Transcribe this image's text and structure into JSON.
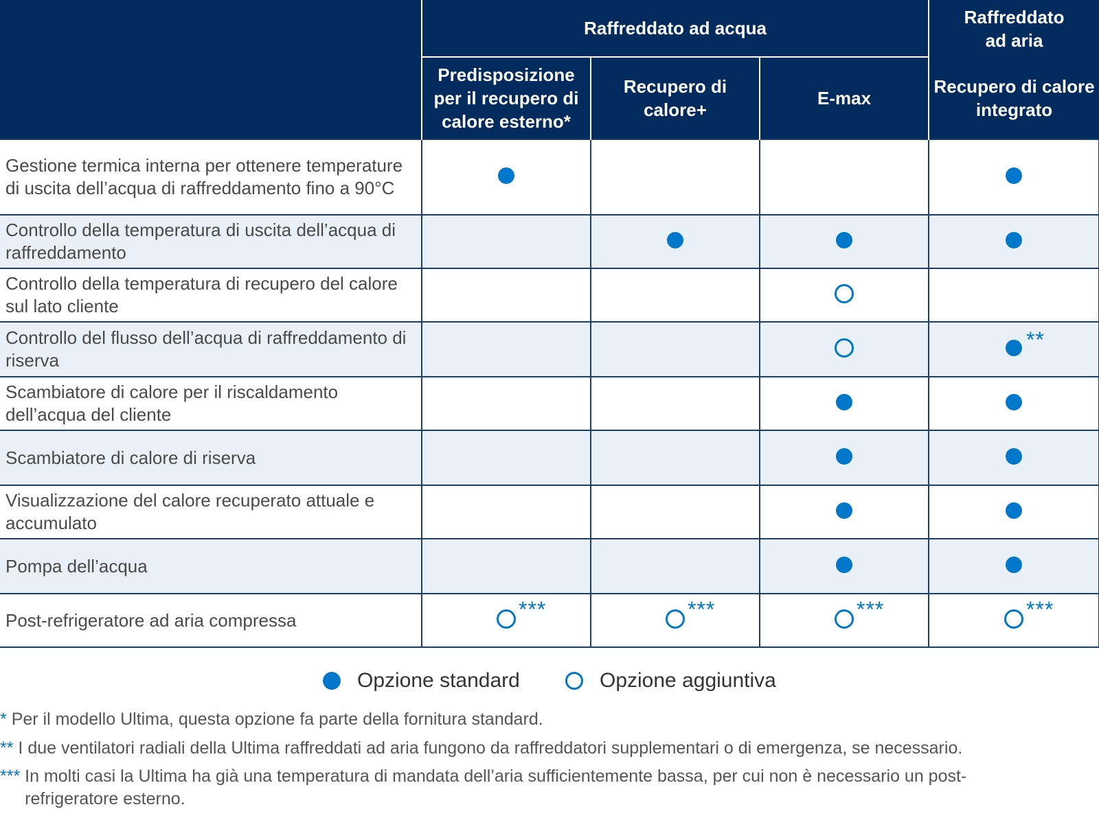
{
  "header": {
    "group_water": "Raffreddato ad acqua",
    "group_air": "Raffreddato ad aria",
    "columns": [
      "Predisposizione per il recupero di calore esterno*",
      "Recupero di calore+",
      "E-max",
      "Recupero di calore integrato"
    ]
  },
  "rows": [
    {
      "feature": "Gestione termica interna per ottenere temperature di uscita dell’acqua di raffreddamento fino a 90°C",
      "marks": [
        "standard",
        "",
        "",
        "standard"
      ],
      "stars": [
        "",
        "",
        "",
        ""
      ]
    },
    {
      "feature": "Controllo della temperatura di uscita dell’acqua di raffreddamento",
      "marks": [
        "",
        "standard",
        "standard",
        "standard"
      ],
      "stars": [
        "",
        "",
        "",
        ""
      ]
    },
    {
      "feature": "Controllo della temperatura di recupero del calore sul lato cliente",
      "marks": [
        "",
        "",
        "optional",
        ""
      ],
      "stars": [
        "",
        "",
        "",
        ""
      ]
    },
    {
      "feature": "Controllo del flusso dell’acqua di raffreddamento di riserva",
      "marks": [
        "",
        "",
        "optional",
        "standard"
      ],
      "stars": [
        "",
        "",
        "",
        "**"
      ]
    },
    {
      "feature": "Scambiatore di calore per il riscaldamento dell’acqua del cliente",
      "marks": [
        "",
        "",
        "standard",
        "standard"
      ],
      "stars": [
        "",
        "",
        "",
        ""
      ]
    },
    {
      "feature": "Scambiatore di calore di riserva",
      "marks": [
        "",
        "",
        "standard",
        "standard"
      ],
      "stars": [
        "",
        "",
        "",
        ""
      ]
    },
    {
      "feature": "Visualizzazione del calore recuperato attuale e accumulato",
      "marks": [
        "",
        "",
        "standard",
        "standard"
      ],
      "stars": [
        "",
        "",
        "",
        ""
      ]
    },
    {
      "feature": "Pompa dell’acqua",
      "marks": [
        "",
        "",
        "standard",
        "standard"
      ],
      "stars": [
        "",
        "",
        "",
        ""
      ]
    },
    {
      "feature": "Post-refrigeratore ad aria compressa",
      "marks": [
        "optional",
        "optional",
        "optional",
        "optional"
      ],
      "stars": [
        "***",
        "***",
        "***",
        "***"
      ]
    }
  ],
  "legend": {
    "standard": "Opzione standard",
    "optional": "Opzione aggiuntiva"
  },
  "footnotes": [
    {
      "mark": "*",
      "text": "Per il modello Ultima, questa opzione fa parte della fornitura standard."
    },
    {
      "mark": "**",
      "text": "I due ventilatori radiali della Ultima raffreddati ad aria fungono da raffreddatori supplementari o di emergenza, se necessario."
    },
    {
      "mark": "***",
      "text": "In molti casi la Ultima ha già una temperatura di mandata dell’aria sufficientemente bassa, per cui non è necessario un post-refrigeratore esterno."
    }
  ],
  "colors": {
    "header_bg": "#002b5c",
    "accent": "#0077c8",
    "row_alt_bg": "#eaf0f8"
  }
}
